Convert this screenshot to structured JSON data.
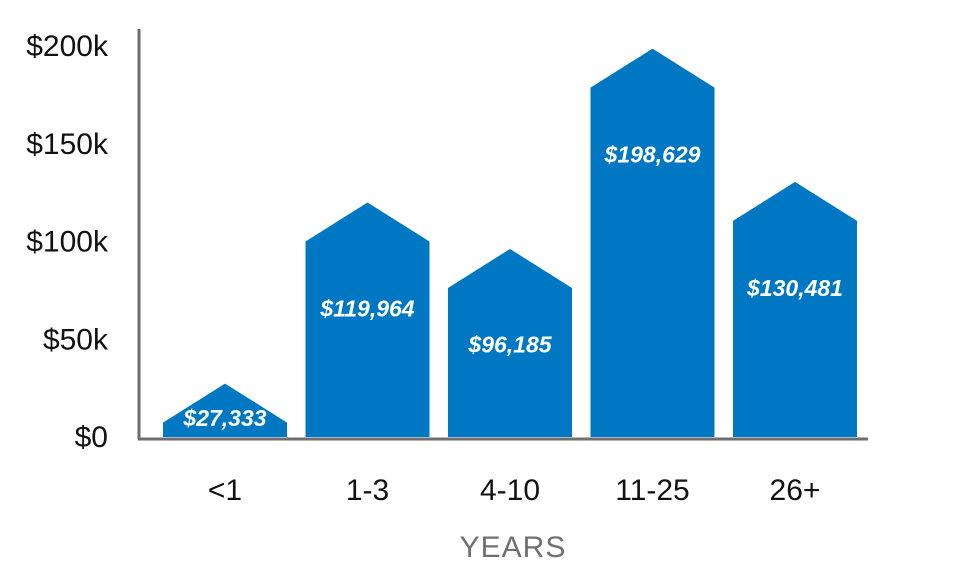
{
  "chart_data": {
    "type": "bar",
    "categories": [
      "<1",
      "1-3",
      "4-10",
      "11-25",
      "26+"
    ],
    "values": [
      27333,
      119964,
      96185,
      198629,
      130481
    ],
    "data_labels": [
      "$27,333",
      "$119,964",
      "$96,185",
      "$198,629",
      "$130,481"
    ],
    "title": "",
    "xlabel": "YEARS",
    "ylabel": "",
    "ylim": [
      0,
      200000
    ],
    "yticks": [
      0,
      50000,
      100000,
      150000,
      200000
    ],
    "ytick_labels": [
      "$0",
      "$50k",
      "$100k",
      "$150k",
      "$200k"
    ],
    "grid": false,
    "legend": "none",
    "bar_shape": "house",
    "colors": {
      "bar": "#0077c2",
      "axis": "#6e6e6e",
      "label": "#ffffff",
      "xlabel": "#707070"
    }
  }
}
